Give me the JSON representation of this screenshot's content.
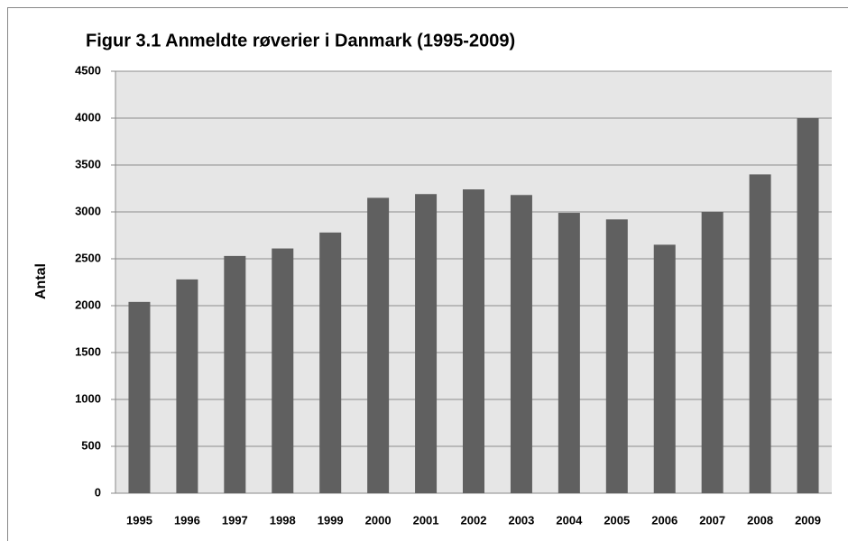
{
  "chart_data": {
    "type": "bar",
    "title": "Figur 3.1 Anmeldte røverier i Danmark (1995-2009)",
    "y_label": "Antal",
    "categories": [
      "1995",
      "1996",
      "1997",
      "1998",
      "1999",
      "2000",
      "2001",
      "2002",
      "2003",
      "2004",
      "2005",
      "2006",
      "2007",
      "2008",
      "2009"
    ],
    "values": [
      2040,
      2280,
      2530,
      2610,
      2780,
      3150,
      3190,
      3240,
      3180,
      2990,
      2920,
      2650,
      3000,
      3400,
      4000
    ],
    "color": "#606060",
    "ylim": [
      0,
      4500
    ],
    "yticks": [
      0,
      500,
      1000,
      1500,
      2000,
      2500,
      3000,
      3500,
      4000,
      4500
    ],
    "grid": true
  }
}
